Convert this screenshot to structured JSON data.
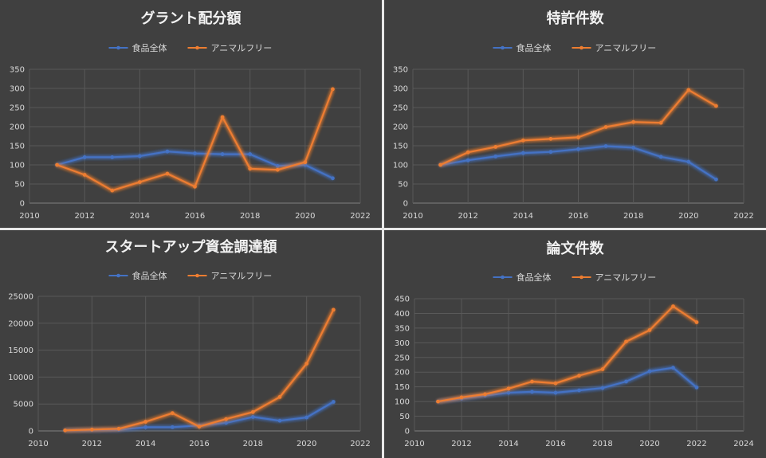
{
  "colors": {
    "food": "#4472c4",
    "animalfree": "#ed7d31",
    "background": "#404040"
  },
  "chart_data": [
    {
      "id": "grant",
      "type": "line",
      "title": "グラント配分額",
      "series": [
        {
          "name": "食品全体",
          "x": [
            2011,
            2012,
            2013,
            2014,
            2015,
            2016,
            2017,
            2018,
            2019,
            2020,
            2021
          ],
          "values": [
            100,
            120,
            120,
            123,
            135,
            130,
            128,
            128,
            97,
            100,
            65
          ]
        },
        {
          "name": "アニマルフリー",
          "x": [
            2011,
            2012,
            2013,
            2014,
            2015,
            2016,
            2017,
            2018,
            2019,
            2020,
            2021
          ],
          "values": [
            100,
            74,
            33,
            55,
            77,
            43,
            225,
            90,
            87,
            107,
            298
          ]
        }
      ],
      "xlim": [
        2010,
        2022
      ],
      "xticks": [
        2010,
        2012,
        2014,
        2016,
        2018,
        2020,
        2022
      ],
      "ylim": [
        0,
        350
      ],
      "yticks": [
        0,
        50,
        100,
        150,
        200,
        250,
        300,
        350
      ],
      "xlabel": "",
      "ylabel": "",
      "grid": true,
      "legend": "top"
    },
    {
      "id": "patent",
      "type": "line",
      "title": "特許件数",
      "series": [
        {
          "name": "食品全体",
          "x": [
            2011,
            2012,
            2013,
            2014,
            2015,
            2016,
            2017,
            2018,
            2019,
            2020,
            2021
          ],
          "values": [
            100,
            112,
            122,
            131,
            134,
            141,
            149,
            145,
            121,
            108,
            62
          ]
        },
        {
          "name": "アニマルフリー",
          "x": [
            2011,
            2012,
            2013,
            2014,
            2015,
            2016,
            2017,
            2018,
            2019,
            2020,
            2021
          ],
          "values": [
            100,
            133,
            147,
            164,
            168,
            172,
            199,
            212,
            210,
            296,
            254
          ]
        }
      ],
      "xlim": [
        2010,
        2022
      ],
      "xticks": [
        2010,
        2012,
        2014,
        2016,
        2018,
        2020,
        2022
      ],
      "ylim": [
        0,
        350
      ],
      "yticks": [
        0,
        50,
        100,
        150,
        200,
        250,
        300,
        350
      ],
      "xlabel": "",
      "ylabel": "",
      "grid": true,
      "legend": "top"
    },
    {
      "id": "funding",
      "type": "line",
      "title": "スタートアップ資金調達額",
      "series": [
        {
          "name": "食品全体",
          "x": [
            2011,
            2012,
            2013,
            2014,
            2015,
            2016,
            2017,
            2018,
            2019,
            2020,
            2021
          ],
          "values": [
            100,
            150,
            200,
            700,
            700,
            1000,
            1500,
            2600,
            1900,
            2500,
            5400
          ]
        },
        {
          "name": "アニマルフリー",
          "x": [
            2011,
            2012,
            2013,
            2014,
            2015,
            2016,
            2017,
            2018,
            2019,
            2020,
            2021
          ],
          "values": [
            100,
            250,
            400,
            1700,
            3300,
            800,
            2200,
            3500,
            6300,
            12500,
            22500
          ]
        }
      ],
      "xlim": [
        2010,
        2022
      ],
      "xticks": [
        2010,
        2012,
        2014,
        2016,
        2018,
        2020,
        2022
      ],
      "ylim": [
        0,
        25000
      ],
      "yticks": [
        0,
        5000,
        10000,
        15000,
        20000,
        25000
      ],
      "xlabel": "",
      "ylabel": "",
      "grid": true,
      "legend": "top"
    },
    {
      "id": "paper",
      "type": "line",
      "title": "論文件数",
      "series": [
        {
          "name": "食品全体",
          "x": [
            2011,
            2012,
            2013,
            2014,
            2015,
            2016,
            2017,
            2018,
            2019,
            2020,
            2021,
            2022
          ],
          "values": [
            100,
            110,
            120,
            130,
            133,
            130,
            138,
            146,
            168,
            203,
            215,
            148
          ]
        },
        {
          "name": "アニマルフリー",
          "x": [
            2011,
            2012,
            2013,
            2014,
            2015,
            2016,
            2017,
            2018,
            2019,
            2020,
            2021,
            2022
          ],
          "values": [
            100,
            114,
            125,
            144,
            168,
            162,
            188,
            210,
            304,
            343,
            424,
            370
          ]
        }
      ],
      "xlim": [
        2010,
        2024
      ],
      "xticks": [
        2010,
        2012,
        2014,
        2016,
        2018,
        2020,
        2022,
        2024
      ],
      "ylim": [
        0,
        450
      ],
      "yticks": [
        0,
        50,
        100,
        150,
        200,
        250,
        300,
        350,
        400,
        450
      ],
      "xlabel": "",
      "ylabel": "",
      "grid": true,
      "legend": "top"
    }
  ]
}
